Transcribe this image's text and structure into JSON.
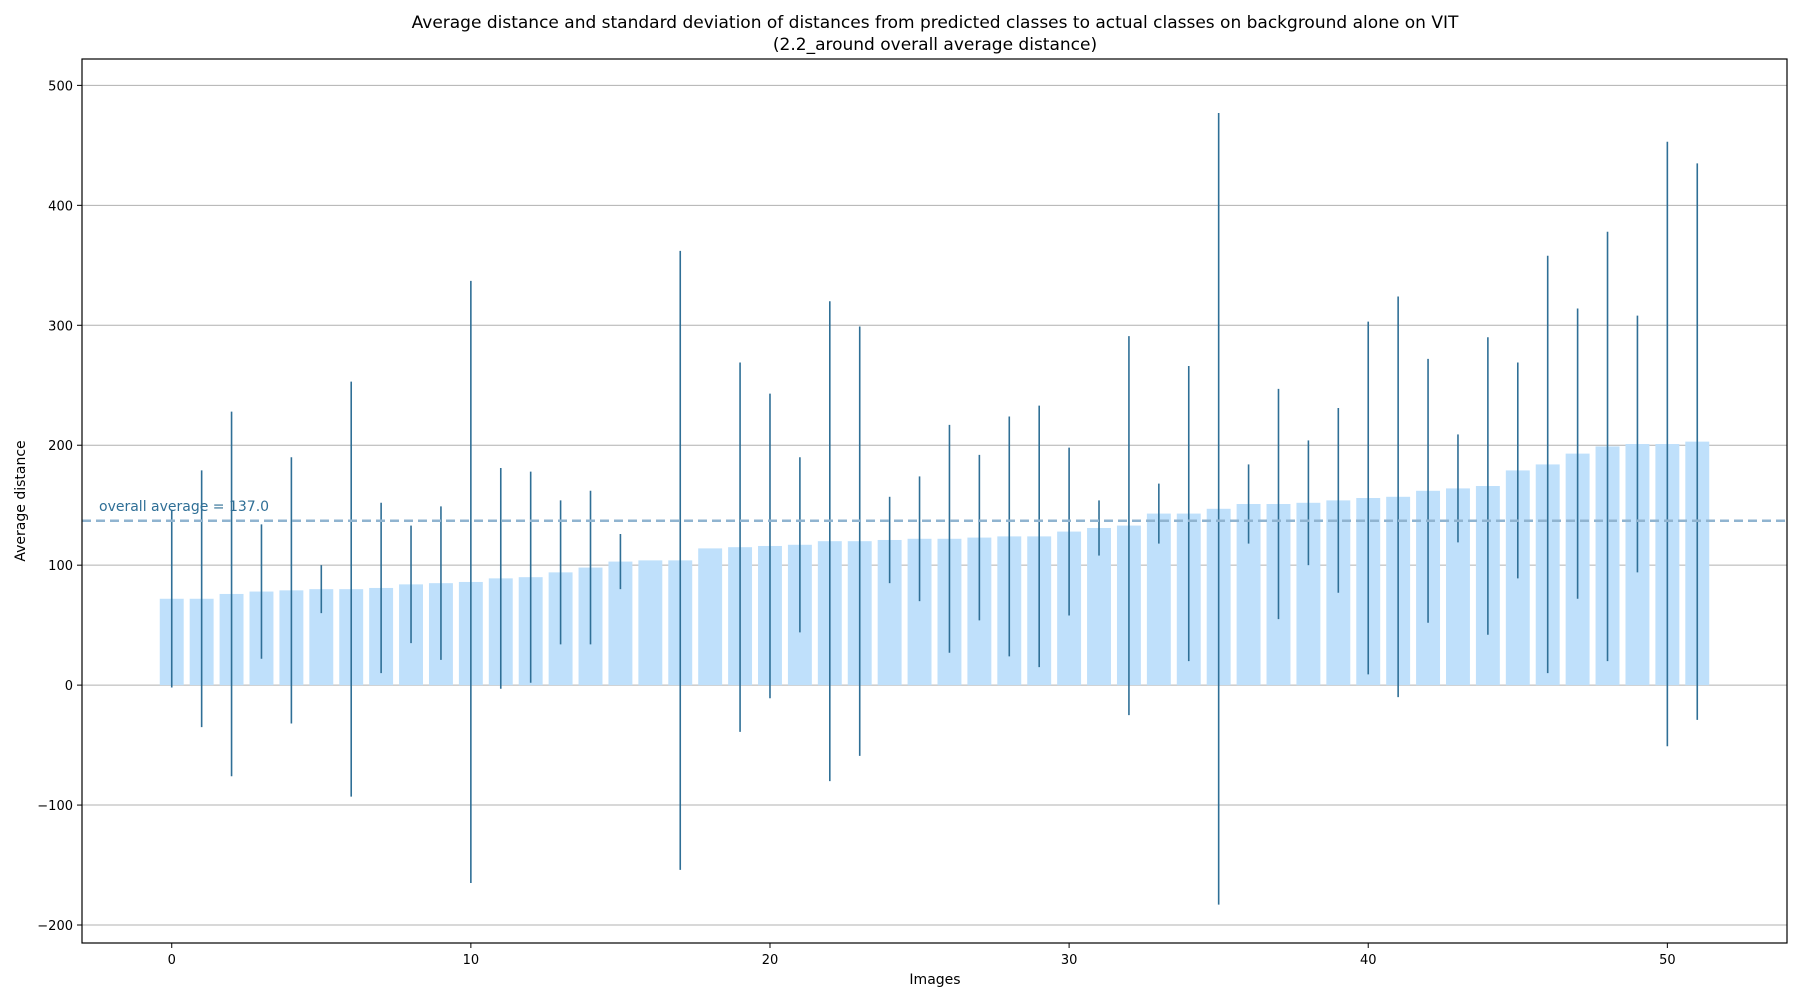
{
  "chart_data": {
    "type": "bar",
    "title": "Average distance and standard deviation of distances from predicted classes to actual classes on background alone on VIT",
    "subtitle": "(2.2_around overall average distance)",
    "xlabel": "Images",
    "ylabel": "Average distance",
    "xlim": [
      -3,
      54
    ],
    "ylim": [
      -215,
      522
    ],
    "xticks": [
      0,
      10,
      20,
      30,
      40,
      50
    ],
    "yticks": [
      -200,
      -100,
      0,
      100,
      200,
      300,
      400,
      500
    ],
    "ytick_labels": [
      "−200",
      "−100",
      "0",
      "100",
      "200",
      "300",
      "400",
      "500"
    ],
    "grid": "horizontal",
    "bar_color": "#bfe0fb",
    "error_color": "#2f6f96",
    "overall_average": 137.0,
    "overall_average_label": "overall average = 137.0",
    "overall_average_color": "#90b4d0",
    "x": [
      0,
      1,
      2,
      3,
      4,
      5,
      6,
      7,
      8,
      9,
      10,
      11,
      12,
      13,
      14,
      15,
      16,
      17,
      18,
      19,
      20,
      21,
      22,
      23,
      24,
      25,
      26,
      27,
      28,
      29,
      30,
      31,
      32,
      33,
      34,
      35,
      36,
      37,
      38,
      39,
      40,
      41,
      42,
      43,
      44,
      45,
      46,
      47,
      48,
      49,
      50,
      51
    ],
    "values": [
      72,
      72,
      76,
      78,
      79,
      80,
      80,
      81,
      84,
      85,
      86,
      89,
      90,
      94,
      98,
      103,
      104,
      104,
      114,
      115,
      116,
      117,
      120,
      120,
      121,
      122,
      122,
      123,
      124,
      124,
      128,
      131,
      133,
      143,
      143,
      147,
      151,
      151,
      152,
      154,
      156,
      157,
      162,
      164,
      166,
      179,
      184,
      193,
      199,
      201,
      201,
      203
    ],
    "error": [
      74,
      107,
      152,
      56,
      111,
      20,
      173,
      71,
      49,
      64,
      251,
      92,
      88,
      60,
      64,
      23,
      0,
      258,
      0,
      154,
      127,
      73,
      200,
      179,
      36,
      52,
      95,
      69,
      100,
      109,
      70,
      23,
      158,
      25,
      123,
      330,
      33,
      96,
      52,
      77,
      147,
      167,
      110,
      45,
      124,
      90,
      174,
      121,
      179,
      107,
      252,
      232
    ]
  }
}
